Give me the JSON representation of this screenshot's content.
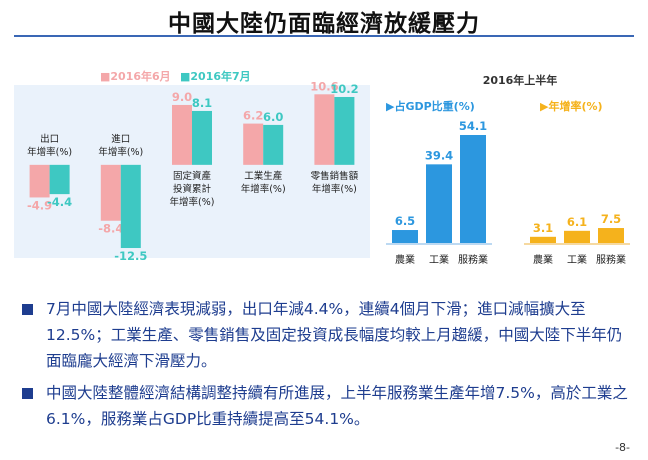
{
  "title": "中國大陸仍面臨經濟放緩壓力",
  "page_number": "-8-",
  "colors": {
    "jun": "#f4a7a9",
    "jul": "#3ec8c2",
    "gdp": "#2c97df",
    "growth": "#f5b21c",
    "accent": "#1e3d8f"
  },
  "chart_data": [
    {
      "type": "bar",
      "legend": [
        "■2016年6月",
        "■2016年7月"
      ],
      "categories": [
        [
          "出口",
          "年增率(%)"
        ],
        [
          "進口",
          "年增率(%)"
        ],
        [
          "固定資產",
          "投資累計",
          "年增率(%)"
        ],
        [
          "工業生產",
          "年增率(%)"
        ],
        [
          "零售銷售額",
          "年增率(%)"
        ]
      ],
      "series": [
        {
          "name": "2016年6月",
          "values": [
            -4.9,
            -8.4,
            9.0,
            6.2,
            10.6
          ],
          "labels": [
            "-4.9",
            "-8.4",
            "9.0",
            "6.2",
            "10.6"
          ]
        },
        {
          "name": "2016年7月",
          "values": [
            -4.4,
            -12.5,
            8.1,
            6.0,
            10.2
          ],
          "labels": [
            "-4.4",
            "-12.5",
            "8.1",
            "6.0",
            "10.2"
          ]
        }
      ],
      "ylim": [
        -14,
        12
      ]
    },
    {
      "type": "bar",
      "title": "2016年上半年",
      "panels": [
        {
          "label": "占GDP比重(%)",
          "categories": [
            "農業",
            "工業",
            "服務業"
          ],
          "values": [
            6.5,
            39.4,
            54.1
          ],
          "labels": [
            "6.5",
            "39.4",
            "54.1"
          ]
        },
        {
          "label": "年增率(%)",
          "categories": [
            "農業",
            "工業",
            "服務業"
          ],
          "values": [
            3.1,
            6.1,
            7.5
          ],
          "labels": [
            "3.1",
            "6.1",
            "7.5"
          ]
        }
      ]
    }
  ],
  "bullets": [
    "7月中國大陸經濟表現減弱，出口年減4.4%，連續4個月下滑；進口減幅擴大至12.5%；工業生產、零售銷售及固定投資成長幅度均較上月趨緩，中國大陸下半年仍面臨龐大經濟下滑壓力。",
    "中國大陸整體經濟結構調整持續有所進展，上半年服務業生產年增7.5%，高於工業之6.1%，服務業占GDP比重持續提高至54.1%。"
  ]
}
